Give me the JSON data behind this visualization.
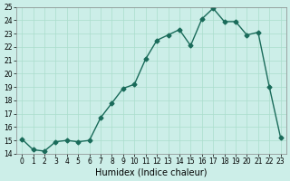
{
  "x": [
    0,
    1,
    2,
    3,
    4,
    5,
    6,
    7,
    8,
    9,
    10,
    11,
    12,
    13,
    14,
    15,
    16,
    17,
    18,
    19,
    20,
    21,
    22,
    23
  ],
  "y": [
    15.1,
    14.3,
    14.2,
    14.9,
    15.0,
    14.9,
    15.0,
    16.7,
    17.8,
    18.9,
    19.2,
    21.1,
    22.5,
    22.9,
    23.3,
    22.1,
    24.1,
    24.9,
    23.9,
    23.9,
    22.9,
    23.1,
    19.0,
    15.2
  ],
  "xlabel": "Humidex (Indice chaleur)",
  "ylim": [
    14,
    25
  ],
  "xlim": [
    0,
    23
  ],
  "yticks": [
    14,
    15,
    16,
    17,
    18,
    19,
    20,
    21,
    22,
    23,
    24,
    25
  ],
  "xticks": [
    0,
    1,
    2,
    3,
    4,
    5,
    6,
    7,
    8,
    9,
    10,
    11,
    12,
    13,
    14,
    15,
    16,
    17,
    18,
    19,
    20,
    21,
    22,
    23
  ],
  "line_color": "#1a6b5a",
  "marker_color": "#1a6b5a",
  "bg_color": "#cceee8",
  "grid_color": "#aaddcc",
  "fig_bg": "#cceee8"
}
